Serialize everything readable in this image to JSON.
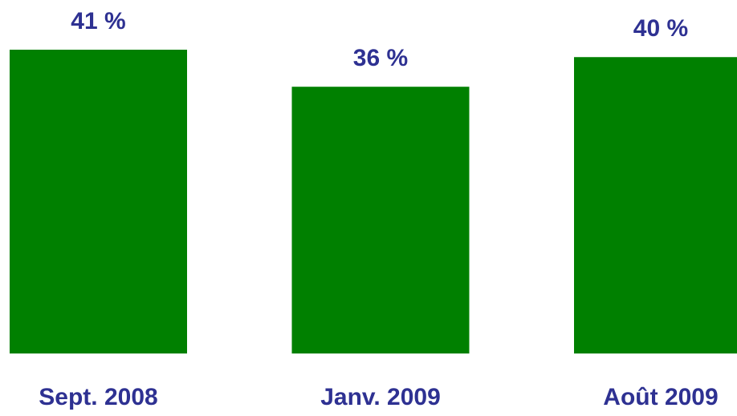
{
  "chart_data": {
    "type": "bar",
    "categories": [
      "Sept. 2008",
      "Janv. 2009",
      "Août 2009"
    ],
    "values": [
      41,
      36,
      40
    ],
    "value_labels": [
      "41 %",
      "36 %",
      "40 %"
    ],
    "color": "#008000"
  }
}
